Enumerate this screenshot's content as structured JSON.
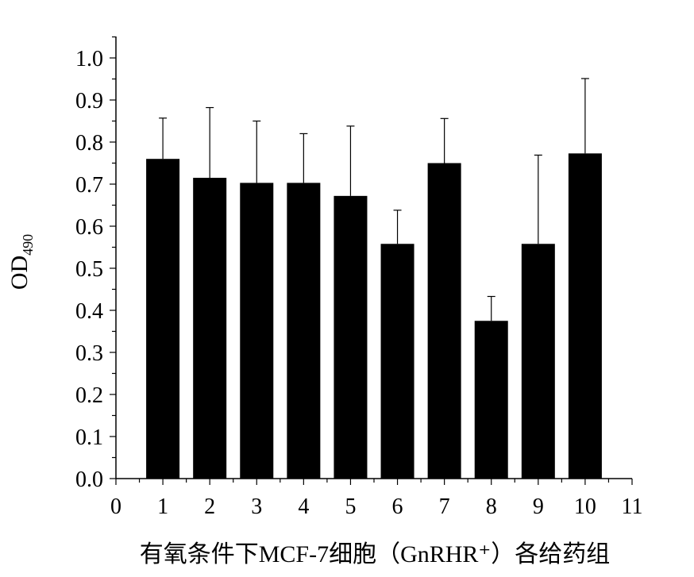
{
  "chart_data": {
    "type": "bar",
    "x": [
      1,
      2,
      3,
      4,
      5,
      6,
      7,
      8,
      9,
      10
    ],
    "values": [
      0.76,
      0.715,
      0.703,
      0.703,
      0.672,
      0.558,
      0.75,
      0.375,
      0.558,
      0.773
    ],
    "errors_upper": [
      0.857,
      0.882,
      0.85,
      0.82,
      0.838,
      0.638,
      0.856,
      0.433,
      0.769,
      0.951
    ],
    "xlim": [
      0,
      11
    ],
    "ylim": [
      0,
      1.05
    ],
    "x_ticks": [
      "0",
      "1",
      "2",
      "3",
      "4",
      "5",
      "6",
      "7",
      "8",
      "9",
      "10",
      "11"
    ],
    "y_ticks": [
      "0.0",
      "0.1",
      "0.2",
      "0.3",
      "0.4",
      "0.5",
      "0.6",
      "0.7",
      "0.8",
      "0.9",
      "1.0"
    ],
    "xlabel": "有氧条件下MCF-7细胞（GnRHR⁺）各给药组",
    "ylabel": "OD",
    "ylabel_subscript": "490",
    "bar_color": "#000000",
    "grid": false,
    "legend": "none"
  }
}
